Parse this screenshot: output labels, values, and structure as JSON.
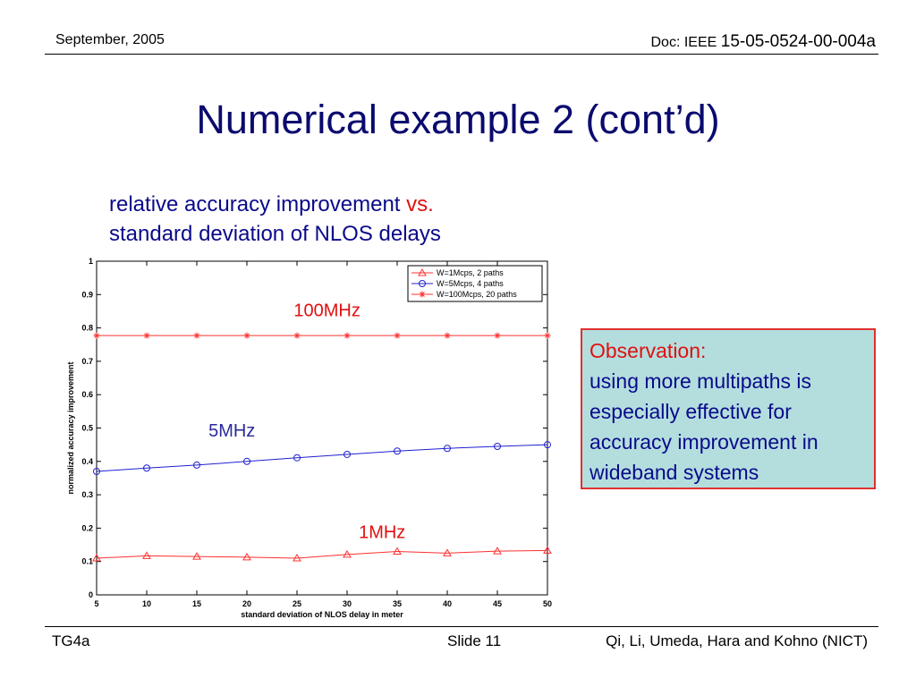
{
  "header": {
    "date": "September, 2005",
    "doc_prefix": "Doc: IEEE ",
    "doc_number": "15-05-0524-00-004a"
  },
  "slide": {
    "title": "Numerical example 2 (cont’d)",
    "subtitle_line1_a": "relative accuracy improvement ",
    "subtitle_line1_vs": "vs.",
    "subtitle_line2": "standard deviation of NLOS delays"
  },
  "observation": {
    "title": "Observation:",
    "lines": [
      "using more multipaths is",
      "especially effective for",
      "accuracy improvement in",
      "wideband systems"
    ]
  },
  "footer": {
    "left": "TG4a",
    "slide_label": "Slide",
    "slide_number": "11",
    "authors": "Qi, Li, Umeda, Hara and Kohno (NICT)"
  },
  "colors": {
    "title": "#0a0a6e",
    "red": "#e01010",
    "blue": "#0a0a8a",
    "box_bg": "#b4dede"
  },
  "chart_data": {
    "type": "line",
    "xlabel": "standard deviation of NLOS delay in meter",
    "ylabel": "normalized accuracy improvement",
    "xlim": [
      5,
      50
    ],
    "ylim": [
      0,
      1
    ],
    "xticks": [
      5,
      10,
      15,
      20,
      25,
      30,
      35,
      40,
      45,
      50
    ],
    "yticks": [
      "0",
      "0.1",
      "0.2",
      "0.3",
      "0.4",
      "0.5",
      "0.6",
      "0.7",
      "0.8",
      "0.9",
      "1"
    ],
    "grid": false,
    "legend": "top-right",
    "x": [
      5,
      10,
      15,
      20,
      25,
      30,
      35,
      40,
      45,
      50
    ],
    "series": [
      {
        "name": "W=1Mcps, 2 paths",
        "color": "#ff3030",
        "marker": "triangle",
        "values": [
          0.11,
          0.117,
          0.115,
          0.113,
          0.11,
          0.121,
          0.13,
          0.125,
          0.131,
          0.133
        ]
      },
      {
        "name": "W=5Mcps, 4 paths",
        "color": "#2020d0",
        "marker": "circle",
        "values": [
          0.37,
          0.38,
          0.389,
          0.4,
          0.411,
          0.421,
          0.431,
          0.439,
          0.445,
          0.45
        ]
      },
      {
        "name": "W=100Mcps, 20 paths",
        "color": "#ff3030",
        "marker": "star",
        "values": [
          0.777,
          0.777,
          0.777,
          0.777,
          0.777,
          0.777,
          0.777,
          0.777,
          0.777,
          0.777
        ]
      }
    ],
    "annotations": [
      {
        "text": "100MHz",
        "color": "#e01010",
        "x": 28,
        "y": 0.835
      },
      {
        "text": "5MHz",
        "color": "#2a2a9a",
        "x": 18.5,
        "y": 0.475
      },
      {
        "text": "1MHz",
        "color": "#e01010",
        "x": 33.5,
        "y": 0.17
      }
    ]
  }
}
